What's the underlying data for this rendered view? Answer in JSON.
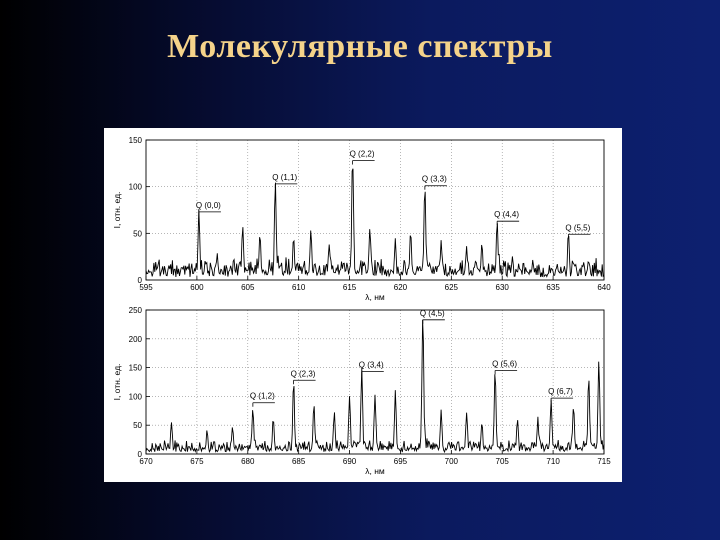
{
  "slide": {
    "title": "Молекулярные спектры"
  },
  "colors": {
    "title": "#f5d38a",
    "line": "#000000",
    "panel": "#ffffff"
  },
  "chart_data": [
    {
      "type": "line",
      "xlabel": "λ, нм",
      "ylabel": "I, отн. ед.",
      "xlim": [
        595,
        640
      ],
      "ylim": [
        0,
        150
      ],
      "xticks": [
        595,
        600,
        605,
        610,
        615,
        620,
        625,
        630,
        635,
        640
      ],
      "yticks": [
        0,
        50,
        100,
        150
      ],
      "grid": true,
      "peaks": [
        {
          "x": 600.2,
          "y": 72
        },
        {
          "x": 602.0,
          "y": 28
        },
        {
          "x": 604.5,
          "y": 55
        },
        {
          "x": 606.2,
          "y": 48
        },
        {
          "x": 607.7,
          "y": 102
        },
        {
          "x": 609.5,
          "y": 45
        },
        {
          "x": 611.2,
          "y": 52
        },
        {
          "x": 613.0,
          "y": 38
        },
        {
          "x": 615.3,
          "y": 127
        },
        {
          "x": 617.0,
          "y": 55
        },
        {
          "x": 619.5,
          "y": 42
        },
        {
          "x": 621.0,
          "y": 50
        },
        {
          "x": 622.4,
          "y": 100
        },
        {
          "x": 624.0,
          "y": 42
        },
        {
          "x": 626.5,
          "y": 35
        },
        {
          "x": 628.0,
          "y": 38
        },
        {
          "x": 629.5,
          "y": 62
        },
        {
          "x": 631.0,
          "y": 25
        },
        {
          "x": 633.0,
          "y": 20
        },
        {
          "x": 636.5,
          "y": 48
        },
        {
          "x": 638.5,
          "y": 18
        }
      ],
      "annotations": [
        {
          "text": "Q (0,0)",
          "x": 600.2,
          "y": 73
        },
        {
          "text": "Q (1,1)",
          "x": 607.7,
          "y": 103
        },
        {
          "text": "Q (2,2)",
          "x": 615.3,
          "y": 128
        },
        {
          "text": "Q (3,3)",
          "x": 622.4,
          "y": 101
        },
        {
          "text": "Q (4,4)",
          "x": 629.5,
          "y": 63
        },
        {
          "text": "Q (5,5)",
          "x": 636.5,
          "y": 49
        }
      ]
    },
    {
      "type": "line",
      "xlabel": "λ, нм",
      "ylabel": "I, отн. ед.",
      "xlim": [
        670,
        715
      ],
      "ylim": [
        0,
        250
      ],
      "xticks": [
        670,
        675,
        680,
        685,
        690,
        695,
        700,
        705,
        710,
        715
      ],
      "yticks": [
        0,
        50,
        100,
        150,
        200,
        250
      ],
      "grid": true,
      "peaks": [
        {
          "x": 672.5,
          "y": 55
        },
        {
          "x": 676.0,
          "y": 40
        },
        {
          "x": 678.5,
          "y": 45
        },
        {
          "x": 680.5,
          "y": 78
        },
        {
          "x": 682.5,
          "y": 62
        },
        {
          "x": 684.5,
          "y": 123
        },
        {
          "x": 686.5,
          "y": 85
        },
        {
          "x": 688.5,
          "y": 70
        },
        {
          "x": 690.0,
          "y": 98
        },
        {
          "x": 691.2,
          "y": 138
        },
        {
          "x": 692.5,
          "y": 100
        },
        {
          "x": 694.5,
          "y": 105
        },
        {
          "x": 697.2,
          "y": 228
        },
        {
          "x": 699.0,
          "y": 75
        },
        {
          "x": 701.5,
          "y": 70
        },
        {
          "x": 703.0,
          "y": 52
        },
        {
          "x": 704.3,
          "y": 140
        },
        {
          "x": 706.5,
          "y": 60
        },
        {
          "x": 708.5,
          "y": 60
        },
        {
          "x": 709.8,
          "y": 92
        },
        {
          "x": 712.0,
          "y": 82
        },
        {
          "x": 713.5,
          "y": 128
        },
        {
          "x": 714.5,
          "y": 155
        }
      ],
      "annotations": [
        {
          "text": "Q (1,2)",
          "x": 680.5,
          "y": 89
        },
        {
          "text": "Q (2,3)",
          "x": 684.5,
          "y": 128
        },
        {
          "text": "Q (3,4)",
          "x": 691.2,
          "y": 143
        },
        {
          "text": "Q (4,5)",
          "x": 697.2,
          "y": 233
        },
        {
          "text": "Q (5,6)",
          "x": 704.3,
          "y": 145
        },
        {
          "text": "Q (6,7)",
          "x": 709.8,
          "y": 97
        }
      ]
    }
  ]
}
